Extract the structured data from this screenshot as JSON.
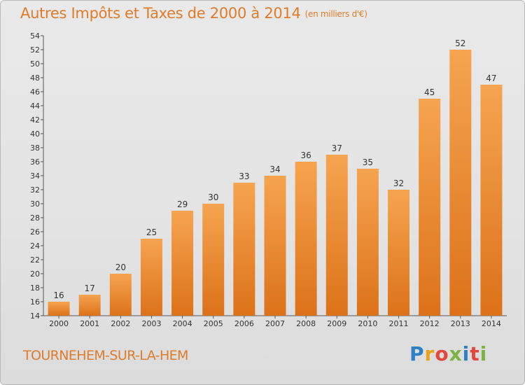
{
  "title": "Autres Impôts et Taxes de 2000 à 2014",
  "subtitle": "(en milliers d'€)",
  "town": "TOURNEHEM-SUR-LA-HEM",
  "logo": {
    "text": "Proxiti",
    "colors": [
      "#2f7fc4",
      "#e8a21c",
      "#e2483b",
      "#7cb342",
      "#2f7fc4",
      "#e2483b",
      "#7cb342"
    ]
  },
  "colors": {
    "bar_light": "#f6a450",
    "bar_dark": "#dc7219",
    "title": "#e07b2a"
  },
  "chart_data": {
    "type": "bar",
    "categories": [
      "2000",
      "2001",
      "2002",
      "2003",
      "2004",
      "2005",
      "2006",
      "2007",
      "2008",
      "2009",
      "2010",
      "2011",
      "2012",
      "2013",
      "2014"
    ],
    "values": [
      16,
      17,
      20,
      25,
      29,
      30,
      33,
      34,
      36,
      37,
      35,
      32,
      45,
      52,
      47
    ],
    "ylim": [
      14,
      54
    ],
    "yticks": [
      14,
      16,
      18,
      20,
      22,
      24,
      26,
      28,
      30,
      32,
      34,
      36,
      38,
      40,
      42,
      44,
      46,
      48,
      50,
      52,
      54
    ],
    "grid": false,
    "legend": "none"
  }
}
